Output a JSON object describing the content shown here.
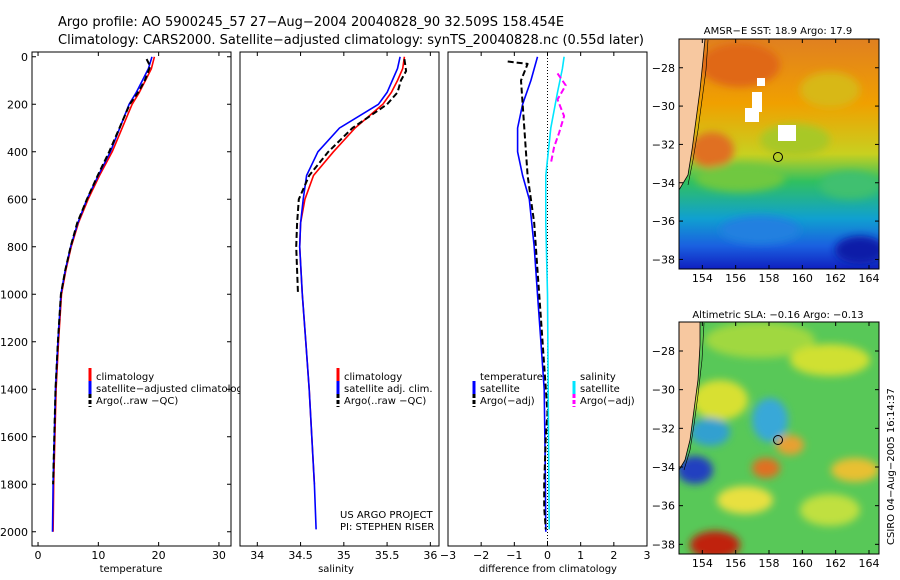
{
  "header": {
    "line1": "Argo profile: AO 5900245_57 27−Aug−2004 20040828_90 32.509S 158.454E",
    "line2": "Climatology: CARS2000. Satellite−adjusted climatology: synTS_20040828.nc (0.55d later)"
  },
  "credit": "CSIRO 04−Aug−2005 16:14:37",
  "project": {
    "line1": "US ARGO PROJECT",
    "line2": "PI: STEPHEN RISER"
  },
  "colors": {
    "climatology": "#ff0000",
    "satellite": "#0000ff",
    "argo": "#000000",
    "salinity_sat": "#00e5ff",
    "salinity_argo": "#ff00ff",
    "land": "#f7c8a0"
  },
  "chart_data": [
    {
      "type": "line",
      "id": "temperature",
      "xlabel": "temperature",
      "ylabel": "",
      "xlim": [
        -1,
        32
      ],
      "ylim": [
        2060,
        -20
      ],
      "xticks": [
        0,
        10,
        20,
        30
      ],
      "yticks": [
        0,
        200,
        400,
        600,
        800,
        1000,
        1200,
        1400,
        1600,
        1800,
        2000
      ],
      "legend": [
        "climatology",
        "satellite−adjusted climatology",
        "Argo(..raw −QC)"
      ],
      "series": [
        {
          "name": "climatology",
          "color": "#ff0000",
          "dash": "",
          "x": [
            19.3,
            18.8,
            17.8,
            16.8,
            15.6,
            12.3,
            10.2,
            8.3,
            6.7,
            5.5,
            4.6,
            3.9,
            3.4,
            3.0,
            2.8,
            2.6,
            2.5
          ],
          "y": [
            0,
            50,
            100,
            150,
            200,
            400,
            500,
            600,
            700,
            800,
            900,
            1000,
            1200,
            1400,
            1600,
            1800,
            2000
          ]
        },
        {
          "name": "satellite-adjusted climatology",
          "color": "#0000ff",
          "dash": "",
          "x": [
            18.9,
            18.3,
            17.3,
            16.3,
            15.1,
            12.0,
            10.0,
            8.1,
            6.6,
            5.4,
            4.5,
            3.8,
            3.3,
            2.9,
            2.7,
            2.5,
            2.4
          ],
          "y": [
            0,
            50,
            100,
            150,
            200,
            400,
            500,
            600,
            700,
            800,
            900,
            1000,
            1200,
            1400,
            1600,
            1800,
            2000
          ]
        },
        {
          "name": "Argo(..raw -QC)",
          "color": "#000000",
          "dash": "6,3",
          "x": [
            18.0,
            18.6,
            17.7,
            16.6,
            15.2,
            11.8,
            9.9,
            8.1,
            6.5,
            5.4,
            4.5,
            3.8,
            3.3,
            2.9,
            2.7,
            2.5
          ],
          "y": [
            10,
            40,
            100,
            150,
            200,
            400,
            500,
            600,
            700,
            800,
            900,
            1000,
            1200,
            1400,
            1600,
            1800
          ]
        }
      ]
    },
    {
      "type": "line",
      "id": "salinity",
      "xlabel": "salinity",
      "ylabel": "",
      "xlim": [
        33.8,
        36.1
      ],
      "ylim": [
        2060,
        -20
      ],
      "xticks": [
        34,
        34.5,
        35,
        35.5,
        36
      ],
      "yticks": [],
      "legend": [
        "climatology",
        "satellite adj. clim.",
        "Argo(..raw −QC)"
      ],
      "series": [
        {
          "name": "climatology",
          "color": "#ff0000",
          "dash": "",
          "x": [
            35.7,
            35.68,
            35.62,
            35.55,
            35.45,
            35.13,
            34.88,
            34.65,
            34.55,
            34.5,
            34.49,
            34.52,
            34.56,
            34.6,
            34.63,
            34.66
          ],
          "y": [
            0,
            50,
            100,
            150,
            200,
            300,
            400,
            500,
            600,
            700,
            800,
            1000,
            1200,
            1400,
            1600,
            1800
          ]
        },
        {
          "name": "satellite adj. clim.",
          "color": "#0000ff",
          "dash": "",
          "x": [
            35.65,
            35.62,
            35.56,
            35.5,
            35.4,
            34.95,
            34.7,
            34.57,
            34.53,
            34.5,
            34.49,
            34.52,
            34.56,
            34.6,
            34.63,
            34.66,
            34.68
          ],
          "y": [
            0,
            50,
            100,
            150,
            200,
            300,
            400,
            500,
            600,
            700,
            800,
            1000,
            1200,
            1400,
            1600,
            1800,
            1990
          ]
        },
        {
          "name": "Argo(..raw -QC)",
          "color": "#000000",
          "dash": "6,3",
          "x": [
            35.7,
            35.72,
            35.66,
            35.62,
            35.5,
            35.1,
            34.82,
            34.6,
            34.48,
            34.46,
            34.45,
            34.46,
            34.47
          ],
          "y": [
            10,
            60,
            100,
            150,
            200,
            300,
            400,
            500,
            600,
            700,
            800,
            900,
            1000
          ]
        }
      ]
    },
    {
      "type": "line",
      "id": "difference",
      "xlabel": "difference from climatology",
      "ylabel": "",
      "xlim": [
        -3,
        3
      ],
      "ylim": [
        2060,
        -20
      ],
      "xticks": [
        -3,
        -2,
        -1,
        0,
        1,
        2,
        3
      ],
      "yticks": [],
      "legend_left": [
        "temperature",
        "satellite",
        "Argo(−adj)"
      ],
      "legend_right": [
        "salinity",
        "satellite",
        "Argo(−adj)"
      ],
      "series": [
        {
          "name": "temperature satellite",
          "color": "#0000ff",
          "dash": "",
          "x": [
            -0.3,
            -0.5,
            -0.75,
            -0.9,
            -0.9,
            -0.75,
            -0.55,
            -0.4,
            -0.3,
            -0.2,
            -0.1,
            -0.07,
            -0.05
          ],
          "y": [
            0,
            100,
            200,
            300,
            400,
            500,
            600,
            800,
            1000,
            1200,
            1400,
            1700,
            2000
          ]
        },
        {
          "name": "temperature Argo",
          "color": "#000000",
          "dash": "6,3",
          "x": [
            -1.2,
            -0.6,
            -0.8,
            -0.7,
            -0.6,
            -0.4,
            -0.3,
            -0.2,
            -0.1,
            0.0,
            -0.05,
            -0.1,
            -0.1,
            -0.05
          ],
          "y": [
            20,
            30,
            100,
            300,
            500,
            700,
            900,
            1100,
            1300,
            1500,
            1600,
            1800,
            1900,
            1990
          ]
        },
        {
          "name": "salinity satellite",
          "color": "#00e5ff",
          "dash": "",
          "x": [
            0.5,
            0.45,
            0.3,
            0.1,
            -0.05,
            -0.05,
            0.0,
            0.02,
            0.05
          ],
          "y": [
            0,
            50,
            150,
            300,
            500,
            700,
            1000,
            1400,
            1990
          ]
        },
        {
          "name": "salinity Argo",
          "color": "#ff00ff",
          "dash": "6,3",
          "x": [
            0.3,
            0.55,
            0.3,
            0.5,
            0.35,
            0.2,
            0.1
          ],
          "y": [
            70,
            120,
            180,
            250,
            320,
            380,
            450
          ]
        }
      ]
    },
    {
      "type": "heatmap",
      "id": "sst",
      "title": "AMSR−E SST: 18.9 Argo: 17.9",
      "xlim": [
        152.6,
        164.6
      ],
      "ylim": [
        -38.5,
        -26.5
      ],
      "xticks": [
        154,
        156,
        158,
        160,
        162,
        164
      ],
      "yticks": [
        -28,
        -30,
        -32,
        -34,
        -36,
        -38
      ],
      "profile_location": [
        158.454,
        -32.509
      ]
    },
    {
      "type": "heatmap",
      "id": "sla",
      "title": "Altimetric SLA: −0.16 Argo: −0.13",
      "xlim": [
        152.6,
        164.6
      ],
      "ylim": [
        -38.5,
        -26.5
      ],
      "xticks": [
        154,
        156,
        158,
        160,
        162,
        164
      ],
      "yticks": [
        -28,
        -30,
        -32,
        -34,
        -36,
        -38
      ],
      "profile_location": [
        158.454,
        -32.509
      ]
    }
  ]
}
